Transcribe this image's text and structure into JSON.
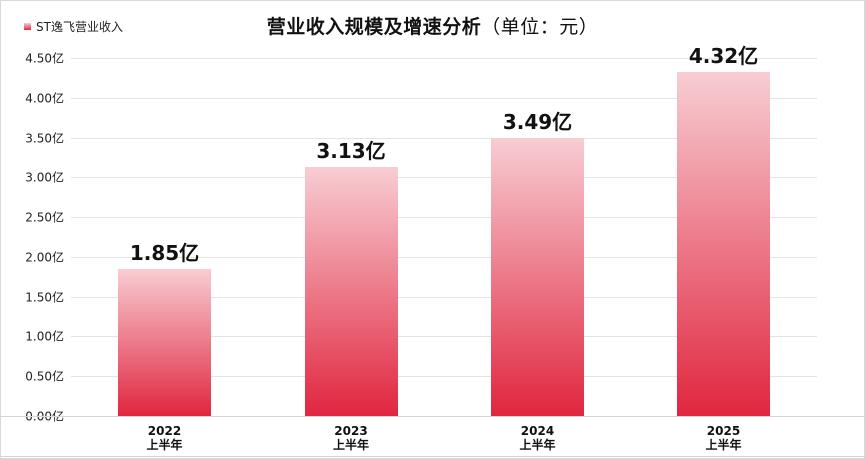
{
  "legend": {
    "label": "ST逸飞营业收入",
    "color": "#e0263f"
  },
  "title": {
    "main": "营业收入规模及增速分析",
    "unit": "（单位：元）"
  },
  "colors": {
    "bar_top": "#f8cdd3",
    "bar_bottom": "#e0263f",
    "grid": "#e3e3e3"
  },
  "y_ticks": [
    "0.00亿",
    "0.50亿",
    "1.00亿",
    "1.50亿",
    "2.00亿",
    "2.50亿",
    "3.00亿",
    "3.50亿",
    "4.00亿",
    "4.50亿"
  ],
  "bars": [
    {
      "year": "2022",
      "period": "上半年",
      "value_label": "1.85亿"
    },
    {
      "year": "2023",
      "period": "上半年",
      "value_label": "3.13亿"
    },
    {
      "year": "2024",
      "period": "上半年",
      "value_label": "3.49亿"
    },
    {
      "year": "2025",
      "period": "上半年",
      "value_label": "4.32亿"
    }
  ],
  "chart_data": {
    "type": "bar",
    "title": "营业收入规模及增速分析（单位：元）",
    "categories": [
      "2022 上半年",
      "2023 上半年",
      "2024 上半年",
      "2025 上半年"
    ],
    "series": [
      {
        "name": "ST逸飞营业收入",
        "values": [
          1.85,
          3.13,
          3.49,
          4.32
        ],
        "unit": "亿"
      }
    ],
    "data_labels": [
      "1.85亿",
      "3.13亿",
      "3.49亿",
      "4.32亿"
    ],
    "xlabel": "",
    "ylabel": "",
    "y_tick_labels": [
      "0.00亿",
      "0.50亿",
      "1.00亿",
      "1.50亿",
      "2.00亿",
      "2.50亿",
      "3.00亿",
      "3.50亿",
      "4.00亿",
      "4.50亿"
    ],
    "ylim": [
      0,
      4.5
    ],
    "grid": true,
    "legend_position": "top-left"
  }
}
